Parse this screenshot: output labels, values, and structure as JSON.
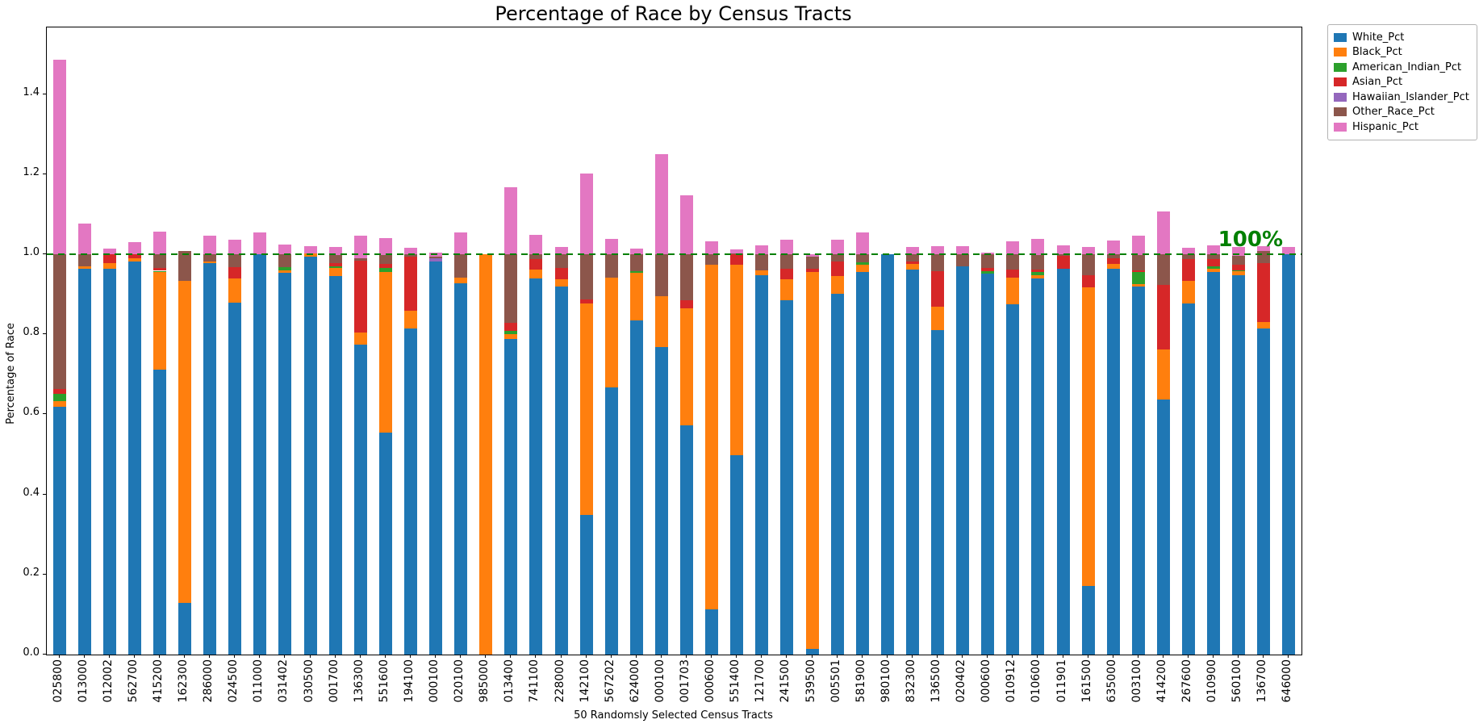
{
  "chart_data": {
    "type": "bar",
    "stacked": true,
    "title": "Percentage of Race by Census Tracts",
    "xlabel": "50 Randomsly Selected Census Tracts",
    "ylabel": "Percentage of Race",
    "ylim": [
      0,
      1.567
    ],
    "yticks": [
      0.0,
      0.2,
      0.4,
      0.6,
      0.8,
      1.0,
      1.2,
      1.4
    ],
    "grid": false,
    "legend_position": "upper-right-outside",
    "reference_line": {
      "value": 1.0,
      "label": "100%",
      "color": "#008000",
      "style": "dashed"
    },
    "categories": [
      "025800",
      "013000",
      "012002",
      "562700",
      "415200",
      "162300",
      "286000",
      "024500",
      "011000",
      "031402",
      "030500",
      "001700",
      "136300",
      "551600",
      "194100",
      "000100",
      "020100",
      "985000",
      "013400",
      "741100",
      "228000",
      "142100",
      "567202",
      "624000",
      "000100",
      "001703",
      "000600",
      "551400",
      "121700",
      "241500",
      "539500",
      "005501",
      "581900",
      "980100",
      "832300",
      "136500",
      "020402",
      "000600",
      "010912",
      "010600",
      "011901",
      "161500",
      "635000",
      "003100",
      "414200",
      "267600",
      "010900",
      "560100",
      "136700",
      "646000"
    ],
    "series": [
      {
        "name": "White_Pct",
        "color": "#1f77b4",
        "values": [
          0.62,
          0.965,
          0.964,
          0.983,
          0.712,
          0.129,
          0.978,
          0.88,
          1.0,
          0.953,
          0.995,
          0.945,
          0.775,
          0.555,
          0.815,
          0.982,
          0.928,
          0.0,
          0.788,
          0.94,
          0.92,
          0.349,
          0.667,
          0.835,
          0.768,
          0.573,
          0.113,
          0.498,
          0.948,
          0.885,
          0.014,
          0.902,
          0.955,
          1.0,
          0.962,
          0.81,
          0.97,
          0.952,
          0.875,
          0.94,
          0.964,
          0.172,
          0.965,
          0.92,
          0.638,
          0.878,
          0.955,
          0.948,
          0.815,
          1.0
        ]
      },
      {
        "name": "Black_Pct",
        "color": "#ff7f0e",
        "values": [
          0.014,
          0.005,
          0.014,
          0.007,
          0.243,
          0.805,
          0.004,
          0.06,
          0.0,
          0.007,
          0.007,
          0.021,
          0.03,
          0.4,
          0.044,
          0.0,
          0.014,
          1.0,
          0.012,
          0.022,
          0.018,
          0.529,
          0.275,
          0.118,
          0.127,
          0.292,
          0.862,
          0.477,
          0.012,
          0.053,
          0.941,
          0.044,
          0.019,
          0.0,
          0.015,
          0.06,
          0.0,
          0.0,
          0.067,
          0.007,
          0.0,
          0.745,
          0.012,
          0.005,
          0.124,
          0.056,
          0.009,
          0.009,
          0.015,
          0.0
        ]
      },
      {
        "name": "American_Indian_Pct",
        "color": "#2ca02c",
        "values": [
          0.018,
          0,
          0,
          0,
          0.004,
          0,
          0,
          0,
          0,
          0.008,
          0,
          0.005,
          0,
          0.011,
          0,
          0,
          0,
          0,
          0.008,
          0,
          0,
          0,
          0,
          0.004,
          0,
          0,
          0,
          0,
          0,
          0,
          0,
          0,
          0.006,
          0,
          0,
          0,
          0,
          0.006,
          0,
          0.008,
          0,
          0,
          0,
          0.031,
          0,
          0,
          0.006,
          0.004,
          0,
          0
        ]
      },
      {
        "name": "Asian_Pct",
        "color": "#d62728",
        "values": [
          0.012,
          0,
          0.022,
          0.01,
          0.008,
          0,
          0,
          0.028,
          0,
          0,
          0,
          0.008,
          0.18,
          0.011,
          0.136,
          0,
          0,
          0,
          0.02,
          0.026,
          0.028,
          0.01,
          0,
          0,
          0,
          0.02,
          0,
          0.025,
          0,
          0.026,
          0.01,
          0.036,
          0,
          0,
          0.006,
          0.088,
          0,
          0.008,
          0.02,
          0.007,
          0.032,
          0.031,
          0.013,
          0.005,
          0.162,
          0.054,
          0.019,
          0.014,
          0.148,
          0
        ]
      },
      {
        "name": "Hawaiian_Islander_Pct",
        "color": "#9467bd",
        "values": [
          0,
          0,
          0,
          0,
          0,
          0,
          0,
          0,
          0,
          0,
          0,
          0,
          0,
          0,
          0,
          0.008,
          0,
          0,
          0,
          0,
          0,
          0,
          0,
          0,
          0,
          0,
          0,
          0,
          0,
          0,
          0,
          0,
          0,
          0,
          0,
          0,
          0,
          0,
          0,
          0,
          0,
          0,
          0,
          0,
          0,
          0,
          0,
          0,
          0,
          0
        ]
      },
      {
        "name": "Other_Race_Pct",
        "color": "#8c564b",
        "values": [
          0.337,
          0.03,
          0,
          0,
          0.033,
          0.074,
          0.018,
          0.032,
          0,
          0.032,
          0,
          0.019,
          0.005,
          0.022,
          0.005,
          0.004,
          0.058,
          0,
          0.172,
          0.012,
          0.034,
          0.112,
          0.058,
          0.043,
          0.105,
          0.115,
          0.025,
          0.003,
          0.04,
          0.036,
          0.03,
          0.018,
          0.02,
          0,
          0.017,
          0.042,
          0.03,
          0.034,
          0.038,
          0.036,
          0.004,
          0.052,
          0.01,
          0.038,
          0.076,
          0.012,
          0.011,
          0.022,
          0.03,
          0
        ]
      },
      {
        "name": "Hispanic_Pct",
        "color": "#e377c2",
        "values": [
          0.485,
          0.076,
          0.014,
          0.03,
          0.057,
          0,
          0.046,
          0.036,
          0.054,
          0.024,
          0.018,
          0.02,
          0.056,
          0.042,
          0.017,
          0.01,
          0.055,
          0,
          0.168,
          0.049,
          0.018,
          0.202,
          0.038,
          0.015,
          0.25,
          0.147,
          0.033,
          0.01,
          0.023,
          0.037,
          0.005,
          0.037,
          0.055,
          0,
          0.019,
          0.021,
          0.021,
          0.004,
          0.033,
          0.04,
          0.022,
          0.019,
          0.034,
          0.047,
          0.107,
          0.017,
          0.023,
          0.022,
          0.013,
          0.018
        ]
      }
    ]
  }
}
